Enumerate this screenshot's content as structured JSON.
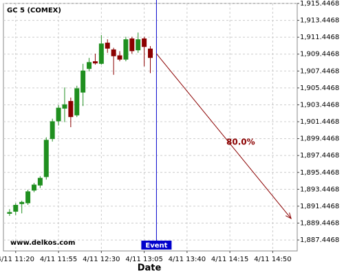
{
  "chart_data": {
    "type": "candlestick",
    "title": "GC 5 (COMEX)",
    "x_label": "Date",
    "watermark": "www.delkos.com",
    "x": [
      "4/11 11:15",
      "4/11 11:20",
      "4/11 11:25",
      "4/11 11:30",
      "4/11 11:35",
      "4/11 11:40",
      "4/11 11:45",
      "4/11 11:50",
      "4/11 11:55",
      "4/11 12:00",
      "4/11 12:05",
      "4/11 12:10",
      "4/11 12:15",
      "4/11 12:20",
      "4/11 12:25",
      "4/11 12:30",
      "4/11 12:35",
      "4/11 12:40",
      "4/11 12:45",
      "4/11 12:50",
      "4/11 12:55",
      "4/11 13:00",
      "4/11 13:05",
      "4/11 13:10"
    ],
    "open": [
      1890.55,
      1890.8,
      1891.7,
      1891.8,
      1893.3,
      1893.9,
      1894.9,
      1899.4,
      1901.5,
      1903.0,
      1903.9,
      1902.2,
      1904.9,
      1907.7,
      1908.6,
      1908.3,
      1910.8,
      1910.0,
      1909.3,
      1908.8,
      1911.3,
      1909.9,
      1911.3,
      1910.1
    ],
    "high": [
      1891.1,
      1891.8,
      1892.1,
      1893.4,
      1894.2,
      1895.0,
      1899.6,
      1901.8,
      1903.4,
      1905.5,
      1904.3,
      1905.7,
      1908.3,
      1909.0,
      1909.5,
      1911.7,
      1911.2,
      1910.2,
      1909.8,
      1911.5,
      1911.5,
      1912.0,
      1911.5,
      1910.4
    ],
    "low": [
      1890.3,
      1890.4,
      1890.6,
      1891.6,
      1893.1,
      1893.6,
      1894.6,
      1899.1,
      1901.0,
      1901.4,
      1900.8,
      1902.0,
      1903.3,
      1907.4,
      1908.2,
      1908.2,
      1909.6,
      1907.0,
      1908.6,
      1908.6,
      1909.5,
      1909.6,
      1908.0,
      1907.2
    ],
    "close": [
      1890.75,
      1891.6,
      1891.95,
      1893.2,
      1894.0,
      1894.8,
      1899.3,
      1901.5,
      1903.1,
      1903.5,
      1902.0,
      1905.4,
      1907.5,
      1908.5,
      1908.35,
      1910.7,
      1910.1,
      1909.2,
      1908.8,
      1911.2,
      1909.8,
      1911.2,
      1910.3,
      1909.0
    ],
    "up_color": "#1f8f1f",
    "down_color": "#8b0000",
    "xlim": [
      "4/11 11:10",
      "4/11 15:10"
    ],
    "xticks": [
      "4/11 11:20",
      "4/11 11:55",
      "4/11 12:30",
      "4/11 13:05",
      "4/11 13:40",
      "4/11 14:15",
      "4/11 14:50"
    ],
    "ylim": [
      1886.15,
      1915.4468
    ],
    "yticks": [
      {
        "value": 1887.4468,
        "label": "1,887.4468"
      },
      {
        "value": 1889.4468,
        "label": "1,889.4468"
      },
      {
        "value": 1891.4468,
        "label": "1,891.4468"
      },
      {
        "value": 1893.4468,
        "label": "1,893.4468"
      },
      {
        "value": 1895.4468,
        "label": "1,895.4468"
      },
      {
        "value": 1897.4468,
        "label": "1,897.4468"
      },
      {
        "value": 1899.4468,
        "label": "1,899.4468"
      },
      {
        "value": 1901.4468,
        "label": "1,901.4468"
      },
      {
        "value": 1903.4468,
        "label": "1,903.4468"
      },
      {
        "value": 1905.4468,
        "label": "1,905.4468"
      },
      {
        "value": 1907.4468,
        "label": "1,907.4468"
      },
      {
        "value": 1909.4468,
        "label": "1,909.4468"
      },
      {
        "value": 1911.4468,
        "label": "1,911.4468"
      },
      {
        "value": 1913.4468,
        "label": "1,913.4468"
      },
      {
        "value": 1915.4468,
        "label": "1,915.4468"
      }
    ],
    "grid": true,
    "event": {
      "x": "4/11 13:15",
      "label": "Event",
      "color": "#0000cc"
    },
    "arrow": {
      "start": {
        "x": "4/11 13:15",
        "y": 1909.5
      },
      "end": {
        "x": "4/11 15:05",
        "y": 1889.98
      },
      "label": "80.0%",
      "color": "#8b0000"
    }
  }
}
